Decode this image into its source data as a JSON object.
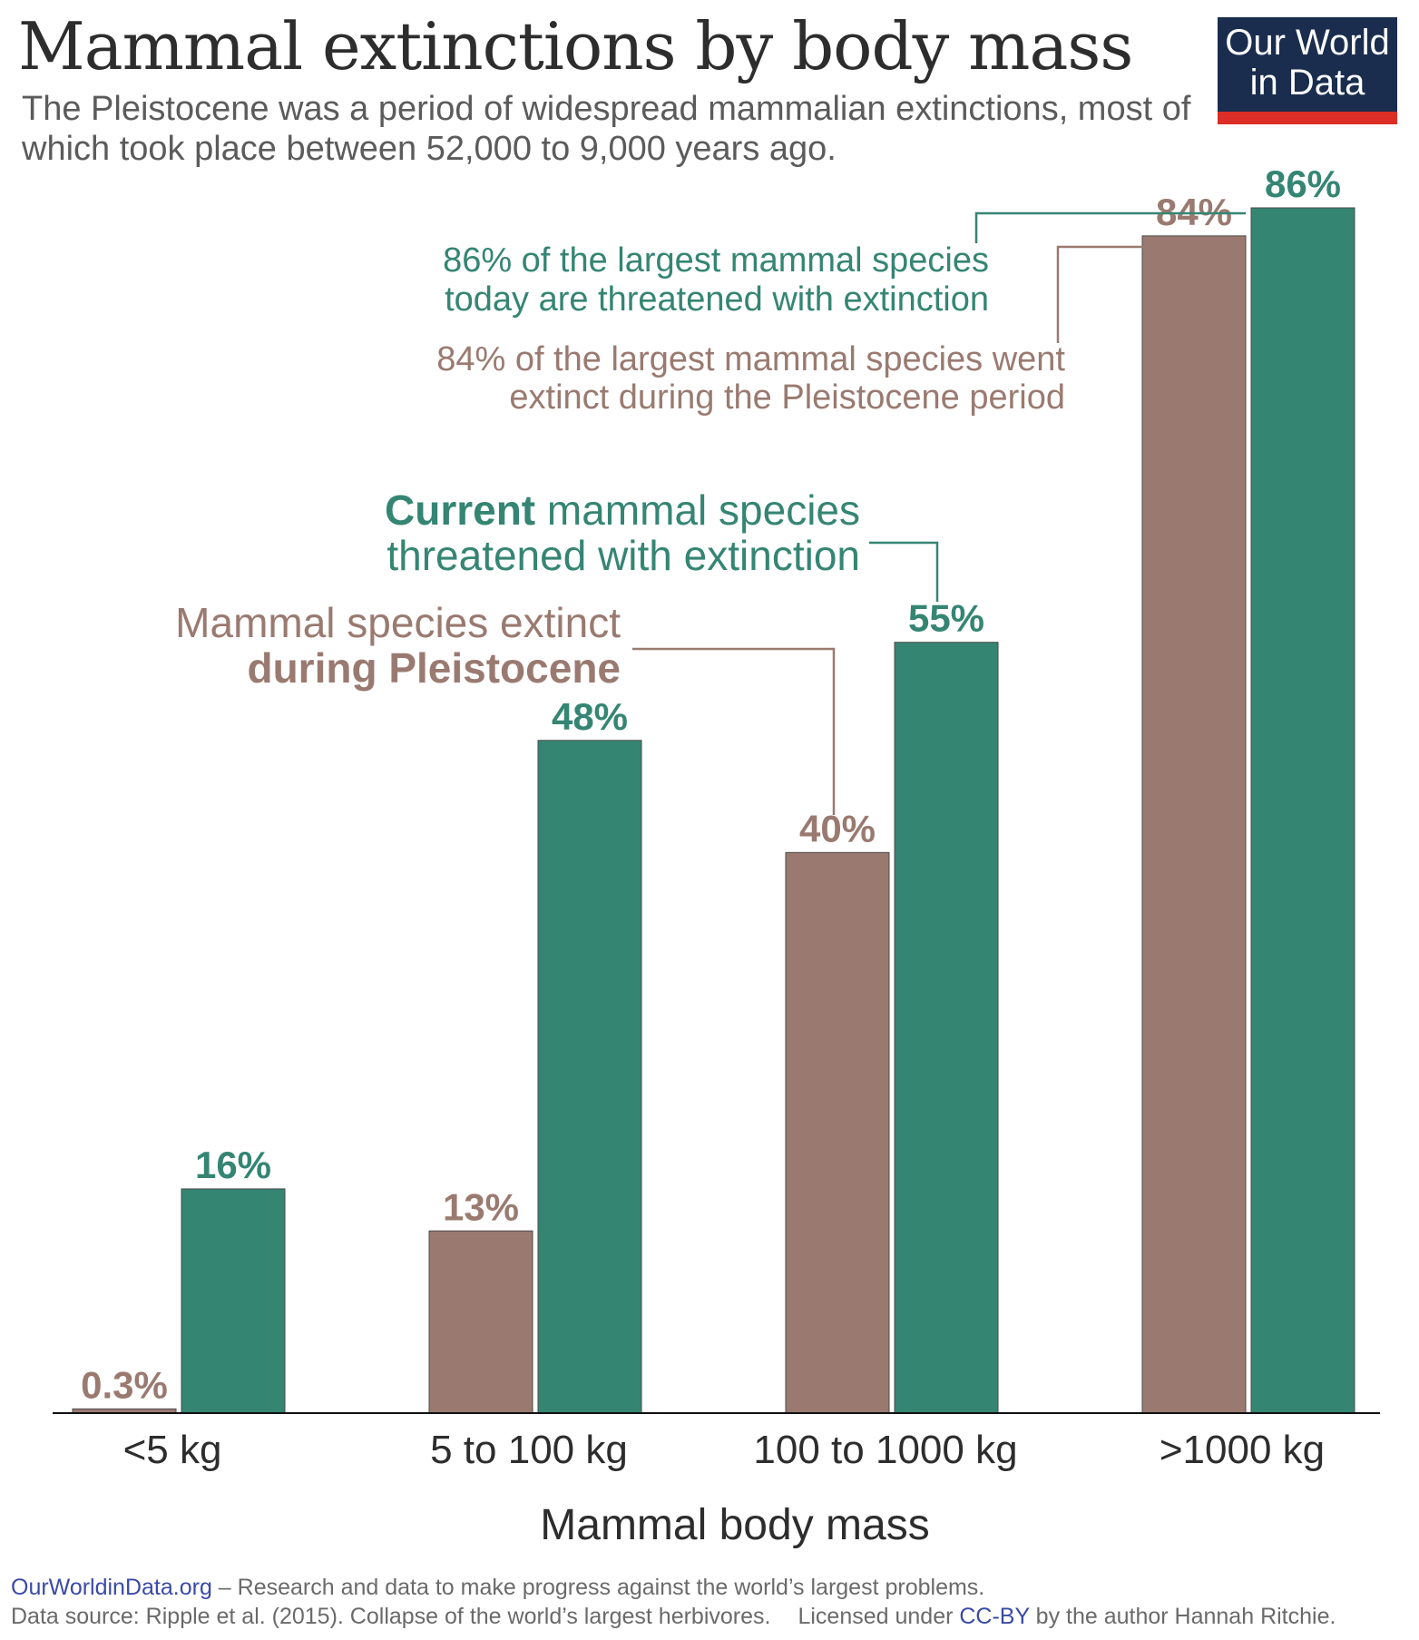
{
  "header": {
    "title": "Mammal extinctions by body mass",
    "subtitle": "The Pleistocene was a period of widespread mammalian extinctions, most of which took place between 52,000 to 9,000 years ago."
  },
  "logo": {
    "line1": "Our World",
    "line2": "in Data"
  },
  "colors": {
    "pleistocene": "#9a7a70",
    "current": "#358573",
    "axis": "#111111",
    "logo_bg": "#1a2d4e",
    "logo_accent": "#dc2e26",
    "link": "#3a4aa6"
  },
  "chart_data": {
    "type": "bar",
    "title": "Mammal extinctions by body mass",
    "xlabel": "Mammal body mass",
    "ylabel": "",
    "ylim": [
      0,
      100
    ],
    "grid": false,
    "categories": [
      "<5 kg",
      "5 to 100 kg",
      "100 to 1000 kg",
      ">1000 kg"
    ],
    "series": [
      {
        "name": "Mammal species extinct during Pleistocene",
        "values": [
          0.3,
          13,
          40,
          84
        ],
        "labels": [
          "0.3%",
          "13%",
          "40%",
          "84%"
        ],
        "color": "#9a7a70"
      },
      {
        "name": "Current mammal species threatened with extinction",
        "values": [
          16,
          48,
          55,
          86
        ],
        "labels": [
          "16%",
          "48%",
          "55%",
          "86%"
        ],
        "color": "#358573"
      }
    ],
    "annotations": {
      "current_label": {
        "bold": "Current",
        "rest": " mammal species",
        "line2": "threatened with extinction"
      },
      "pleistocene_label": {
        "line1": "Mammal species extinct",
        "bold": "during Pleistocene"
      },
      "largest_current": {
        "line1": "86% of the largest mammal species",
        "line2": "today are threatened with extinction"
      },
      "largest_pleistocene": {
        "line1": "84% of the largest mammal species went",
        "line2": "extinct during the Pleistocene period"
      }
    }
  },
  "footer": {
    "site": "OurWorldinData.org",
    "tagline": " – Research and data to make progress against the world’s largest problems.",
    "source": "Data source: Ripple et al. (2015). Collapse of the world’s largest herbivores.",
    "license_prefix": "Licensed under ",
    "license": "CC-BY",
    "license_suffix": " by the author Hannah Ritchie."
  }
}
